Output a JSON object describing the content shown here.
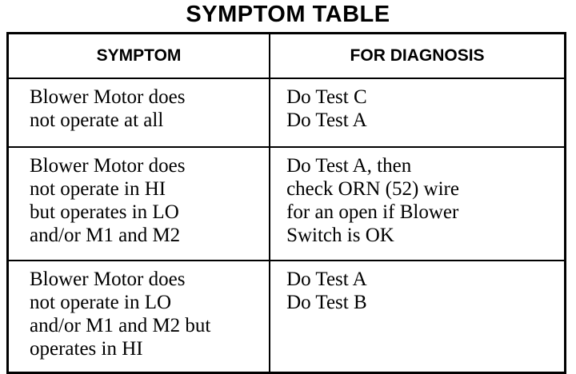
{
  "title": "SYMPTOM TABLE",
  "headers": [
    "SYMPTOM",
    "FOR DIAGNOSIS"
  ],
  "rows": [
    {
      "symptom": [
        "Blower Motor does",
        "not operate at all"
      ],
      "diagnosis": [
        "Do Test C",
        "Do Test A"
      ]
    },
    {
      "symptom": [
        "Blower Motor does",
        "not operate in HI",
        "but operates in LO",
        "and/or M1 and M2"
      ],
      "diagnosis": [
        "Do Test A, then",
        "check ORN (52) wire",
        "for an open if Blower",
        "Switch is OK"
      ]
    },
    {
      "symptom": [
        "Blower Motor does",
        "not operate in LO",
        "and/or M1 and M2 but",
        "operates in HI"
      ],
      "diagnosis": [
        "Do Test A",
        "Do Test B"
      ]
    }
  ]
}
